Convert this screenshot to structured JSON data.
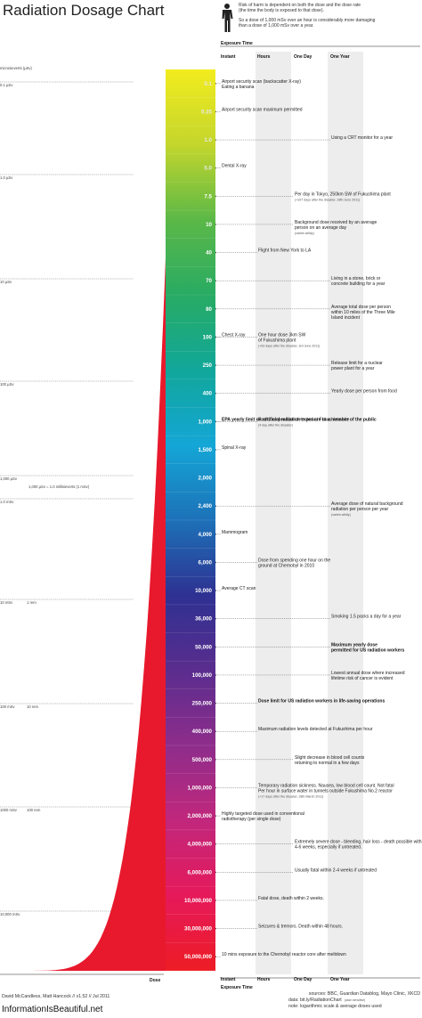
{
  "chart_data": {
    "type": "table",
    "title": "Radiation Dosage Chart",
    "legend": {
      "line1": "Risk of harm is dependent on both the dose and the dose rate",
      "line2": "(the time the body is exposed to that dose).",
      "line3": "So a dose of 1,000 mSv over an hour is considerably more damaging",
      "line4": "than a dose of 1,000 mSv over a year."
    },
    "exposure_time_label": "Exposure Time",
    "columns": [
      "Instant",
      "Hours",
      "One Day",
      "One Year"
    ],
    "dose_axis_label": "Dose",
    "unit_label": "microsieverts (µSv)",
    "log_scale": true,
    "scale_lines": [
      {
        "label": "0.1 µSv",
        "sub": ""
      },
      {
        "label": "1.0 µSv",
        "sub": ""
      },
      {
        "label": "10 µSv",
        "sub": ""
      },
      {
        "label": "100 µSv",
        "sub": ""
      },
      {
        "label": "1,000 µSv",
        "sub": "1,000 µSv = 1.0 millisieverts (1 mSv)"
      },
      {
        "label": "1.0 mSv",
        "sub": ""
      },
      {
        "label": "10 mSv",
        "sub": "1 rem"
      },
      {
        "label": "100 mSv",
        "sub": "10 rem"
      },
      {
        "label": "1000 mSv",
        "sub": "100 rem"
      },
      {
        "label": "10,000 mSv",
        "sub": ""
      }
    ],
    "doses": [
      {
        "label": "0.1",
        "value": 0.1
      },
      {
        "label": "0.25",
        "value": 0.25
      },
      {
        "label": "1.0",
        "value": 1
      },
      {
        "label": "5.0",
        "value": 5
      },
      {
        "label": "7.5",
        "value": 7.5
      },
      {
        "label": "10",
        "value": 10
      },
      {
        "label": "40",
        "value": 40
      },
      {
        "label": "70",
        "value": 70
      },
      {
        "label": "80",
        "value": 80
      },
      {
        "label": "100",
        "value": 100
      },
      {
        "label": "250",
        "value": 250
      },
      {
        "label": "400",
        "value": 400
      },
      {
        "label": "1,000",
        "value": 1000
      },
      {
        "label": "1,500",
        "value": 1500
      },
      {
        "label": "2,000",
        "value": 2000
      },
      {
        "label": "2,400",
        "value": 2400
      },
      {
        "label": "4,000",
        "value": 4000
      },
      {
        "label": "6,000",
        "value": 6000
      },
      {
        "label": "10,000",
        "value": 10000
      },
      {
        "label": "36,000",
        "value": 36000
      },
      {
        "label": "50,000",
        "value": 50000
      },
      {
        "label": "100,000",
        "value": 100000
      },
      {
        "label": "250,000",
        "value": 250000
      },
      {
        "label": "400,000",
        "value": 400000
      },
      {
        "label": "500,000",
        "value": 500000
      },
      {
        "label": "1,000,000",
        "value": 1000000
      },
      {
        "label": "2,000,000",
        "value": 2000000
      },
      {
        "label": "4,000,000",
        "value": 4000000
      },
      {
        "label": "6,000,000",
        "value": 6000000
      },
      {
        "label": "10,000,000",
        "value": 10000000
      },
      {
        "label": "30,000,000",
        "value": 30000000
      },
      {
        "label": "50,000,000",
        "value": 50000000
      }
    ],
    "annotations": [
      {
        "dose": "0.1",
        "column": "Instant",
        "lines": [
          "Airport security scan (backscatter X-ray)",
          "Eating a banana"
        ],
        "note": "",
        "bold": false
      },
      {
        "dose": "0.25",
        "column": "Instant",
        "lines": [
          "Airport security scan maximum permitted"
        ],
        "note": "",
        "bold": false
      },
      {
        "dose": "1.0",
        "column": "One Year",
        "lines": [
          "Using a CRT monitor for a year"
        ],
        "note": "",
        "bold": false
      },
      {
        "dose": "5.0",
        "column": "Instant",
        "lines": [
          "Dental X-ray"
        ],
        "note": "",
        "bold": false
      },
      {
        "dose": "7.5",
        "column": "One Day",
        "lines": [
          "Per day in Tokyo, 250km SW of Fukushima plant"
        ],
        "note": "(+107 days after the disaster, 28th June 2011)",
        "bold": false
      },
      {
        "dose": "10",
        "column": "One Day",
        "lines": [
          "Background dose received by an average",
          "person on an average day"
        ],
        "note": "(varies wildly)",
        "bold": false
      },
      {
        "dose": "40",
        "column": "Hours",
        "lines": [
          "Flight from New York to LA"
        ],
        "note": "",
        "bold": false
      },
      {
        "dose": "70",
        "column": "One Year",
        "lines": [
          "Living in a stone, brick or",
          "concrete building for a year"
        ],
        "note": "",
        "bold": false
      },
      {
        "dose": "80",
        "column": "One Year",
        "lines": [
          "Average total dose per person",
          "within 10 miles of the Three Mile",
          "Island incident"
        ],
        "note": "",
        "bold": false
      },
      {
        "dose": "100",
        "column": "Instant",
        "lines": [
          "Chest X-ray"
        ],
        "note": "",
        "bold": false
      },
      {
        "dose": "100",
        "column": "Hours",
        "lines": [
          "One hour dose 3km SW",
          "of Fukushima plant"
        ],
        "note": "(+93 days after the disaster, 3rd June 2011)",
        "bold": false
      },
      {
        "dose": "250",
        "column": "One Year",
        "lines": [
          "Release limit for a nuclear",
          "power plant for a year"
        ],
        "note": "",
        "bold": false
      },
      {
        "dose": "400",
        "column": "One Year",
        "lines": [
          "Yearly dose per person from food"
        ],
        "note": "",
        "bold": false
      },
      {
        "dose": "1,000",
        "column": "Instant",
        "lines": [
          "EPA yearly limit on artificial radiation exposure to a member of the public"
        ],
        "note": "",
        "bold": true
      },
      {
        "dose": "1,000",
        "column": "Hours",
        "lines": [
          "Radiation per hour detected at Fukushima site"
        ],
        "note": "(4 day after the disaster)",
        "bold": false
      },
      {
        "dose": "1,500",
        "column": "Instant",
        "lines": [
          "Spinal X-ray"
        ],
        "note": "",
        "bold": false
      },
      {
        "dose": "2,400",
        "column": "One Year",
        "lines": [
          "Average dose of natural background",
          "radiation per person per year"
        ],
        "note": "(varies wildly)",
        "bold": false
      },
      {
        "dose": "4,000",
        "column": "Instant",
        "lines": [
          "Mammogram"
        ],
        "note": "",
        "bold": false
      },
      {
        "dose": "6,000",
        "column": "Hours",
        "lines": [
          "Dose from spending one hour on the",
          "ground at Chernobyl in 2010"
        ],
        "note": "",
        "bold": false
      },
      {
        "dose": "10,000",
        "column": "Instant",
        "lines": [
          "Average CT scan"
        ],
        "note": "",
        "bold": false
      },
      {
        "dose": "36,000",
        "column": "One Year",
        "lines": [
          "Smoking 1.5 packs a day for a year"
        ],
        "note": "",
        "bold": false
      },
      {
        "dose": "50,000",
        "column": "One Year",
        "lines": [
          "Maximum yearly dose",
          "permitted for US radiation workers"
        ],
        "note": "",
        "bold": true
      },
      {
        "dose": "100,000",
        "column": "One Year",
        "lines": [
          "Lowest annual dose where increased",
          "lifetime risk of cancer is evident"
        ],
        "note": "",
        "bold": false
      },
      {
        "dose": "250,000",
        "column": "Hours",
        "lines": [
          "Dose limit for US radiation workers in life-saving operations"
        ],
        "note": "",
        "bold": true
      },
      {
        "dose": "400,000",
        "column": "Hours",
        "lines": [
          "Maximum radiation levels detected at Fukushima per hour"
        ],
        "note": "",
        "bold": false
      },
      {
        "dose": "500,000",
        "column": "One Day",
        "lines": [
          "Slight decrease in blood cell counts",
          "returning to normal in a few days"
        ],
        "note": "",
        "bold": false
      },
      {
        "dose": "1,000,000",
        "column": "Hours",
        "lines": [
          "Temporary radiation sickness. Nausea, low blood cell count. Not fatal",
          "Per hour in surface water in tunnels outside Fukushima No.2 reactor"
        ],
        "note": "(+17 days after the disaster, 28th March 2011)",
        "bold": false
      },
      {
        "dose": "2,000,000",
        "column": "Instant",
        "lines": [
          "Highly targeted dose used in conventional",
          "radiotherapy (per single dose)"
        ],
        "note": "",
        "bold": false
      },
      {
        "dose": "4,000,000",
        "column": "One Day",
        "lines": [
          "Extremely severe dose - bleeding, hair loss - death possible within",
          "4-6 weeks, especially if untreated."
        ],
        "note": "",
        "bold": false
      },
      {
        "dose": "6,000,000",
        "column": "One Day",
        "lines": [
          "Usually fatal within 2-4 weeks if untreated"
        ],
        "note": "",
        "bold": false
      },
      {
        "dose": "10,000,000",
        "column": "Hours",
        "lines": [
          "Fatal dose, death within 2 weeks."
        ],
        "note": "",
        "bold": false
      },
      {
        "dose": "30,000,000",
        "column": "Hours",
        "lines": [
          "Seizures & tremors. Death within 48 hours."
        ],
        "note": "",
        "bold": false
      },
      {
        "dose": "50,000,000",
        "column": "Instant",
        "lines": [
          "10 mins exposure to the Chernobyl reactor core after meltdown"
        ],
        "note": "",
        "bold": false
      }
    ],
    "colors": {
      "gradient": [
        "#f2ec1e",
        "#c4d62c",
        "#5bb847",
        "#28ab63",
        "#11a79a",
        "#14a6d6",
        "#1d71b8",
        "#2e3192",
        "#5a2d8e",
        "#8e2d8b",
        "#c1277c",
        "#e6195a",
        "#ed1c24"
      ],
      "curve": "#e8192c",
      "column_shade": "#ededed"
    }
  },
  "footer": {
    "credit": "David McCandless, Matt Hancock // v1.52 // Jul 2011",
    "brand": "InformationIsBeautiful.net",
    "sources": "sources: BBC, Guardian Datablog, Mayo Clinic, XKCD",
    "data": "data: bit.ly/RadiationChart",
    "data_note": "(case sensitive)",
    "note": "note: logarithmic scale & average doses used"
  }
}
